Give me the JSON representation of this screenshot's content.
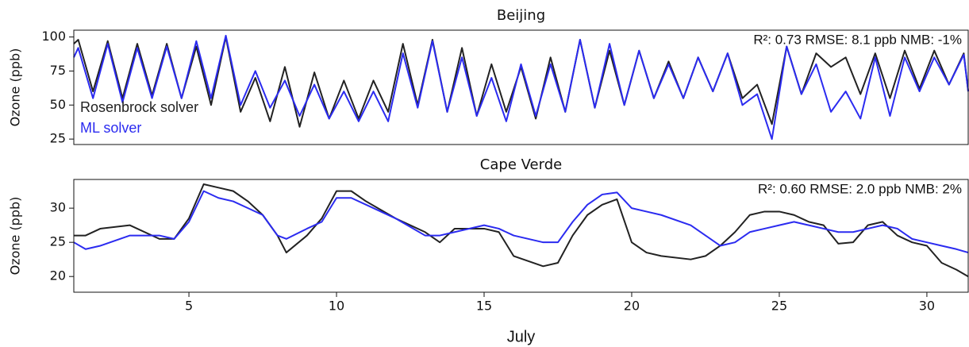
{
  "chart_data": [
    {
      "type": "line",
      "title": "Beijing",
      "y_label": "Ozone (ppb)",
      "annotation": "R²: 0.73  RMSE: 8.1 ppb  NMB: -1%",
      "legend": "center left",
      "xlim": [
        1.1,
        31.4
      ],
      "ylim": [
        21,
        105
      ],
      "yticks": [
        25,
        50,
        75,
        100
      ],
      "x": [
        1.1,
        1.25,
        1.75,
        2.25,
        2.75,
        3.25,
        3.75,
        4.25,
        4.75,
        5.25,
        5.75,
        6.25,
        6.75,
        7.25,
        7.75,
        8.25,
        8.75,
        9.25,
        9.75,
        10.25,
        10.75,
        11.25,
        11.75,
        12.25,
        12.75,
        13.25,
        13.75,
        14.25,
        14.75,
        15.25,
        15.75,
        16.25,
        16.75,
        17.25,
        17.75,
        18.25,
        18.75,
        19.25,
        19.75,
        20.25,
        20.75,
        21.25,
        21.75,
        22.25,
        22.75,
        23.25,
        23.75,
        24.25,
        24.75,
        25.25,
        25.75,
        26.25,
        26.75,
        27.25,
        27.75,
        28.25,
        28.75,
        29.25,
        29.75,
        30.25,
        30.75,
        31.25,
        31.4
      ],
      "series": [
        {
          "name": "Rosenbrock solver",
          "color": "#222222",
          "values": [
            95,
            98,
            60,
            97,
            55,
            95,
            57,
            95,
            55,
            93,
            50,
            100,
            45,
            70,
            38,
            78,
            34,
            74,
            40,
            68,
            40,
            68,
            45,
            95,
            50,
            98,
            45,
            92,
            42,
            80,
            45,
            78,
            40,
            85,
            45,
            98,
            48,
            90,
            50,
            90,
            55,
            82,
            55,
            85,
            60,
            88,
            55,
            65,
            36,
            93,
            58,
            88,
            78,
            85,
            58,
            88,
            55,
            90,
            62,
            90,
            65,
            88,
            60
          ]
        },
        {
          "name": "ML solver",
          "color": "#2b2bf0",
          "values": [
            85,
            92,
            55,
            95,
            52,
            92,
            55,
            93,
            55,
            97,
            55,
            101,
            50,
            75,
            48,
            68,
            42,
            65,
            40,
            60,
            38,
            60,
            38,
            88,
            48,
            97,
            45,
            85,
            42,
            70,
            38,
            80,
            42,
            80,
            45,
            98,
            48,
            95,
            50,
            90,
            55,
            80,
            55,
            85,
            60,
            88,
            50,
            58,
            25,
            93,
            58,
            80,
            45,
            60,
            40,
            85,
            42,
            85,
            60,
            85,
            65,
            87,
            60
          ]
        }
      ]
    },
    {
      "type": "line",
      "title": "Cape Verde",
      "y_label": "Ozone (ppb)",
      "x_label": "July",
      "annotation": "R²: 0.60  RMSE: 2.0 ppb  NMB: 2%",
      "xlim": [
        1.1,
        31.4
      ],
      "ylim": [
        17.7,
        34.2
      ],
      "yticks": [
        20,
        25,
        30
      ],
      "xticks": [
        5,
        10,
        15,
        20,
        25,
        30
      ],
      "x": [
        1.1,
        1.5,
        2,
        3,
        4,
        4.5,
        5,
        5.5,
        6,
        6.5,
        7,
        7.5,
        8,
        8.3,
        9,
        9.5,
        10,
        10.5,
        11,
        12,
        13,
        13.5,
        14,
        15,
        15.5,
        16,
        17,
        17.5,
        18,
        18.5,
        19,
        19.5,
        20,
        20.5,
        21,
        22,
        22.5,
        23,
        23.5,
        24,
        24.5,
        25,
        25.5,
        26,
        26.5,
        27,
        27.5,
        28,
        28.5,
        29,
        29.5,
        30,
        30.5,
        31,
        31.4
      ],
      "series": [
        {
          "name": "Rosenbrock solver",
          "color": "#222222",
          "values": [
            26,
            26,
            27,
            27.5,
            25.5,
            25.5,
            28.5,
            33.5,
            33,
            32.5,
            31,
            29,
            26,
            23.5,
            26,
            28.5,
            32.5,
            32.5,
            31,
            28.5,
            26.5,
            25,
            27,
            27,
            26.5,
            23,
            21.5,
            22,
            26,
            29,
            30.5,
            31.3,
            25,
            23.5,
            23,
            22.5,
            23,
            24.5,
            26.5,
            29,
            29.5,
            29.5,
            29,
            28,
            27.5,
            24.8,
            25,
            27.5,
            28,
            26,
            25,
            24.5,
            22,
            21,
            20
          ]
        },
        {
          "name": "ML solver",
          "color": "#2b2bf0",
          "values": [
            25,
            24,
            24.5,
            26,
            26,
            25.5,
            28,
            32.5,
            31.5,
            31,
            30,
            29,
            26,
            25.5,
            27,
            28,
            31.5,
            31.5,
            30.5,
            28.5,
            26,
            26,
            26.5,
            27.5,
            27,
            26,
            25,
            25,
            28,
            30.5,
            32,
            32.3,
            30,
            29.5,
            29,
            27.5,
            26,
            24.5,
            25,
            26.5,
            27,
            27.5,
            28,
            27.5,
            27,
            26.5,
            26.5,
            27,
            27.5,
            27,
            25.5,
            25,
            24.5,
            24,
            23.5
          ]
        }
      ]
    }
  ]
}
